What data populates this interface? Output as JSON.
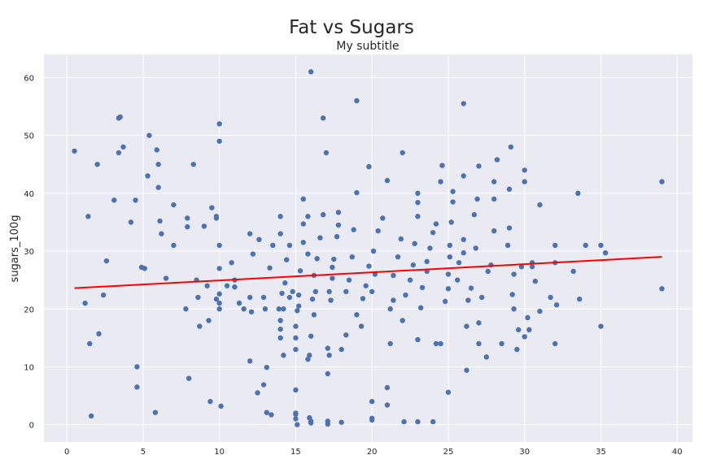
{
  "chart_data": {
    "type": "scatter",
    "title": "Fat vs Sugars",
    "subtitle": "My subtitle",
    "xlabel": "",
    "ylabel": "sugars_100g",
    "xlim": [
      -1.5,
      41
    ],
    "ylim": [
      -3,
      64
    ],
    "xticks": [
      0,
      5,
      10,
      15,
      20,
      25,
      30,
      35,
      40
    ],
    "yticks": [
      0,
      10,
      20,
      30,
      40,
      50,
      60
    ],
    "grid": true,
    "colors": {
      "points": "#4c72b0",
      "trend": "#ff0000",
      "plot_bg": "#eaeaf2",
      "grid": "#ffffff"
    },
    "trendline": {
      "x": [
        0.5,
        39
      ],
      "y": [
        23.6,
        29.0
      ]
    },
    "series": [
      {
        "points": [
          [
            0.5,
            47.3
          ],
          [
            1.2,
            21
          ],
          [
            1.4,
            36
          ],
          [
            1.5,
            14
          ],
          [
            1.6,
            1.5
          ],
          [
            2,
            45
          ],
          [
            2.1,
            15.7
          ],
          [
            2.4,
            22.4
          ],
          [
            2.6,
            28.3
          ],
          [
            3.1,
            38.8
          ],
          [
            3.4,
            53
          ],
          [
            3.5,
            53.2
          ],
          [
            3.4,
            47
          ],
          [
            3.7,
            48
          ],
          [
            4.2,
            35
          ],
          [
            4.5,
            38.8
          ],
          [
            4.6,
            10
          ],
          [
            4.6,
            6.5
          ],
          [
            4.9,
            27.2
          ],
          [
            5.1,
            27
          ],
          [
            5.3,
            43
          ],
          [
            5.4,
            50
          ],
          [
            5.8,
            2.1
          ],
          [
            5.9,
            47.5
          ],
          [
            6,
            45
          ],
          [
            6,
            41
          ],
          [
            6.1,
            35.2
          ],
          [
            6.2,
            33
          ],
          [
            6.5,
            25.3
          ],
          [
            7,
            38
          ],
          [
            7,
            31
          ],
          [
            7.8,
            20
          ],
          [
            7.9,
            35.7
          ],
          [
            7.9,
            34.2
          ],
          [
            8,
            8
          ],
          [
            8.3,
            45
          ],
          [
            8.5,
            25
          ],
          [
            8.6,
            22
          ],
          [
            8.7,
            17
          ],
          [
            9,
            34.3
          ],
          [
            9.2,
            24
          ],
          [
            9.3,
            18
          ],
          [
            9.4,
            4
          ],
          [
            9.5,
            37.5
          ],
          [
            9.8,
            36
          ],
          [
            9.8,
            35.7
          ],
          [
            9.8,
            21.7
          ],
          [
            10,
            52
          ],
          [
            10,
            49
          ],
          [
            10,
            31
          ],
          [
            10,
            27
          ],
          [
            10,
            22.6
          ],
          [
            10,
            21
          ],
          [
            10,
            20
          ],
          [
            10.1,
            3.2
          ],
          [
            10.5,
            24
          ],
          [
            10.8,
            28
          ],
          [
            11,
            23.8
          ],
          [
            11,
            25
          ],
          [
            11.3,
            21
          ],
          [
            11.6,
            20
          ],
          [
            12,
            11
          ],
          [
            12,
            22
          ],
          [
            12,
            33
          ],
          [
            12.1,
            19.5
          ],
          [
            12.2,
            29.5
          ],
          [
            12.5,
            5.5
          ],
          [
            12.6,
            32
          ],
          [
            12.9,
            22
          ],
          [
            12.9,
            6.9
          ],
          [
            13,
            20
          ],
          [
            13.1,
            9.9
          ],
          [
            13.1,
            2.1
          ],
          [
            13.3,
            27.1
          ],
          [
            13.4,
            1.7
          ],
          [
            13.5,
            31
          ],
          [
            13.9,
            20
          ],
          [
            14,
            36
          ],
          [
            14,
            33
          ],
          [
            14.1,
            22.7
          ],
          [
            14,
            15
          ],
          [
            14,
            16.5
          ],
          [
            14,
            18
          ],
          [
            14.2,
            20
          ],
          [
            14.2,
            12
          ],
          [
            14.3,
            24.5
          ],
          [
            14.4,
            28.5
          ],
          [
            14.6,
            31
          ],
          [
            14.6,
            22
          ],
          [
            14.8,
            23
          ],
          [
            15,
            1.8
          ],
          [
            15,
            1
          ],
          [
            15.1,
            0
          ],
          [
            15,
            2
          ],
          [
            15,
            6
          ],
          [
            15,
            13
          ],
          [
            15,
            15
          ],
          [
            15,
            17
          ],
          [
            15.1,
            19.7
          ],
          [
            15.2,
            20.5
          ],
          [
            15.2,
            22.4
          ],
          [
            15.3,
            26.6
          ],
          [
            15.5,
            39
          ],
          [
            15.5,
            34.7
          ],
          [
            15.5,
            31.5
          ],
          [
            15.8,
            29.5
          ],
          [
            15.8,
            36
          ],
          [
            16,
            61
          ],
          [
            16,
            0.3
          ],
          [
            16,
            0.6
          ],
          [
            15.9,
            1.2
          ],
          [
            15.8,
            11.3
          ],
          [
            15.9,
            12
          ],
          [
            16,
            15.3
          ],
          [
            16.2,
            19
          ],
          [
            16.1,
            21.7
          ],
          [
            16.3,
            23
          ],
          [
            16.2,
            25.8
          ],
          [
            16.4,
            28.7
          ],
          [
            16.6,
            32.3
          ],
          [
            16.8,
            36.3
          ],
          [
            16.8,
            53
          ],
          [
            17,
            47
          ],
          [
            17.1,
            0.1
          ],
          [
            17.1,
            0.6
          ],
          [
            17.1,
            8.8
          ],
          [
            17.2,
            12
          ],
          [
            17.1,
            13.2
          ],
          [
            17.3,
            21.5
          ],
          [
            17.2,
            23
          ],
          [
            17.4,
            25.3
          ],
          [
            17.4,
            27.2
          ],
          [
            17.5,
            28.6
          ],
          [
            17.7,
            32.5
          ],
          [
            17.8,
            34.5
          ],
          [
            17.8,
            36.7
          ],
          [
            18,
            0.4
          ],
          [
            18,
            13
          ],
          [
            18.3,
            15.5
          ],
          [
            18.3,
            23
          ],
          [
            18.5,
            25
          ],
          [
            18.7,
            29
          ],
          [
            18.8,
            33.7
          ],
          [
            19,
            40.1
          ],
          [
            19,
            56
          ],
          [
            19,
            19
          ],
          [
            19.3,
            17
          ],
          [
            19.4,
            21.8
          ],
          [
            19.6,
            24
          ],
          [
            19.8,
            27.4
          ],
          [
            19.8,
            44.6
          ],
          [
            20,
            0.8
          ],
          [
            20,
            1.1
          ],
          [
            20,
            4
          ],
          [
            20,
            23
          ],
          [
            20.2,
            26
          ],
          [
            20.1,
            30
          ],
          [
            20.4,
            33.5
          ],
          [
            20.7,
            35.7
          ],
          [
            21,
            42.2
          ],
          [
            21,
            6.4
          ],
          [
            21,
            3.4
          ],
          [
            21.2,
            14
          ],
          [
            21.2,
            20
          ],
          [
            21.4,
            21.5
          ],
          [
            21.4,
            25.8
          ],
          [
            21.7,
            29
          ],
          [
            21.9,
            32.1
          ],
          [
            22,
            47
          ],
          [
            22.1,
            0.5
          ],
          [
            22,
            18
          ],
          [
            22.2,
            22.4
          ],
          [
            22.5,
            25
          ],
          [
            22.7,
            27.6
          ],
          [
            22.8,
            31.3
          ],
          [
            23,
            36
          ],
          [
            23,
            38.4
          ],
          [
            23,
            40
          ],
          [
            23,
            14.7
          ],
          [
            23,
            0.5
          ],
          [
            23.2,
            20.2
          ],
          [
            23.3,
            23.7
          ],
          [
            23.6,
            26.5
          ],
          [
            23.6,
            28.2
          ],
          [
            23.8,
            30.5
          ],
          [
            24,
            33.2
          ],
          [
            24.2,
            34.7
          ],
          [
            24.5,
            42
          ],
          [
            24.6,
            44.8
          ],
          [
            24,
            0.5
          ],
          [
            24.2,
            14
          ],
          [
            24.5,
            14
          ],
          [
            24.8,
            21.3
          ],
          [
            25,
            23.5
          ],
          [
            25,
            26
          ],
          [
            25.1,
            29
          ],
          [
            25.1,
            31
          ],
          [
            25.2,
            35
          ],
          [
            25.3,
            38.5
          ],
          [
            25.3,
            40.3
          ],
          [
            25,
            5.6
          ],
          [
            25.6,
            25
          ],
          [
            25.7,
            28
          ],
          [
            26,
            29.7
          ],
          [
            26,
            32
          ],
          [
            26,
            55.5
          ],
          [
            26,
            43
          ],
          [
            26.2,
            9.4
          ],
          [
            26.2,
            17
          ],
          [
            26.3,
            21.5
          ],
          [
            26.5,
            23.6
          ],
          [
            26.7,
            36.3
          ],
          [
            26.9,
            39
          ],
          [
            27,
            44.7
          ],
          [
            27,
            14
          ],
          [
            27,
            17.6
          ],
          [
            27.2,
            22
          ],
          [
            27.5,
            11.7
          ],
          [
            27.6,
            26.5
          ],
          [
            27.8,
            27.6
          ],
          [
            28,
            33.5
          ],
          [
            28,
            39
          ],
          [
            28,
            42
          ],
          [
            28.2,
            45.8
          ],
          [
            28.5,
            14
          ],
          [
            28.9,
            31
          ],
          [
            29,
            34
          ],
          [
            29,
            40.7
          ],
          [
            29.1,
            48
          ],
          [
            29.3,
            20
          ],
          [
            29.3,
            26
          ],
          [
            29.5,
            13
          ],
          [
            29.6,
            16.4
          ],
          [
            29.8,
            27.3
          ],
          [
            30,
            42
          ],
          [
            30,
            44
          ],
          [
            30,
            15.2
          ],
          [
            30.2,
            18.5
          ],
          [
            30.3,
            16.4
          ],
          [
            30.5,
            28
          ],
          [
            30.5,
            27.3
          ],
          [
            30.7,
            24.8
          ],
          [
            31,
            38
          ],
          [
            31,
            19.6
          ],
          [
            31.7,
            22
          ],
          [
            32,
            31
          ],
          [
            32,
            28
          ],
          [
            32,
            14
          ],
          [
            32.1,
            20.7
          ],
          [
            33.2,
            26.5
          ],
          [
            33.5,
            40
          ],
          [
            33.6,
            21.7
          ],
          [
            34,
            31
          ],
          [
            35,
            31
          ],
          [
            35,
            17
          ],
          [
            39,
            23.5
          ],
          [
            39,
            42
          ],
          [
            35.3,
            29.7
          ],
          [
            29.2,
            22.5
          ],
          [
            26.8,
            30.5
          ]
        ]
      }
    ]
  }
}
